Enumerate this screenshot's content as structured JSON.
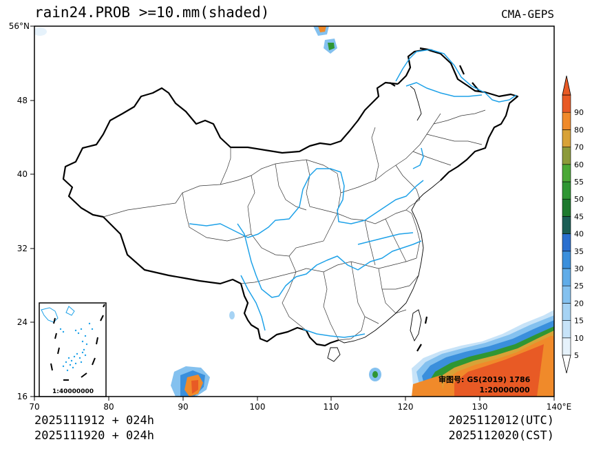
{
  "title": "rain24.PROB >=10.mm(shaded)",
  "source": "CMA-GEPS",
  "footer": {
    "left_line1": "2025111912 + 024h",
    "left_line2": "2025111920 + 024h",
    "right_line1": "2025112012(UTC)",
    "right_line2": "2025112020(CST)"
  },
  "map": {
    "lon_ticks": [
      "70",
      "80",
      "90",
      "100",
      "110",
      "120",
      "130",
      "140°E"
    ],
    "lat_ticks": [
      "56°N",
      "48",
      "40",
      "32",
      "24",
      "16"
    ],
    "extent": {
      "lon": [
        70,
        140
      ],
      "lat": [
        16,
        56
      ]
    },
    "approval_number": "审图号: GS(2019) 1786",
    "scale_main": "1:20000000",
    "inset_scale": "1:40000000",
    "colors": {
      "border": "#000000",
      "province": "#333333",
      "river": "#1da1e8"
    }
  },
  "colorbar": {
    "levels": [
      "5",
      "10",
      "15",
      "20",
      "25",
      "30",
      "35",
      "40",
      "45",
      "50",
      "55",
      "60",
      "70",
      "80",
      "90"
    ],
    "colors": [
      "#e6f2fb",
      "#c7e3f8",
      "#a6d3f4",
      "#84c1ef",
      "#60ace8",
      "#3a8fdc",
      "#2a6fcf",
      "#1b5e55",
      "#1d7a2e",
      "#2f9633",
      "#4aa836",
      "#8c9a3a",
      "#d8a237",
      "#f08a2a",
      "#e85a25"
    ]
  }
}
